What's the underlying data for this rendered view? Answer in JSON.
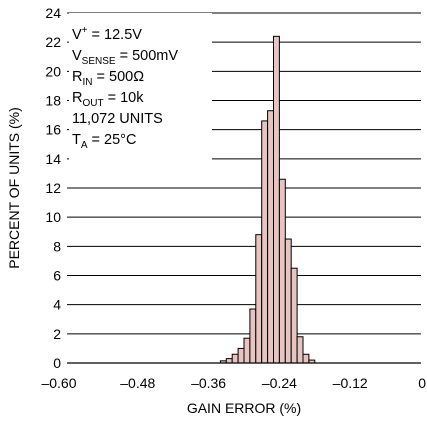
{
  "chart_data": {
    "type": "bar",
    "xlabel": "GAIN ERROR (%)",
    "ylabel": "PERCENT OF UNITS (%)",
    "xlim": [
      -0.6,
      0.0
    ],
    "ylim": [
      0,
      24
    ],
    "x_ticks": [
      -0.6,
      -0.48,
      -0.36,
      -0.24,
      -0.12,
      0
    ],
    "x_tick_labels": [
      "–0.60",
      "–0.48",
      "–0.36",
      "–0.24",
      "–0.12",
      "0"
    ],
    "y_ticks": [
      0,
      2,
      4,
      6,
      8,
      10,
      12,
      14,
      16,
      18,
      20,
      22,
      24
    ],
    "y_tick_labels": [
      "0",
      "2",
      "4",
      "6",
      "8",
      "10",
      "12",
      "14",
      "16",
      "18",
      "20",
      "22",
      "24"
    ],
    "grid": "horizontal",
    "bin_width": 0.01,
    "bars": [
      {
        "x": -0.335,
        "y": 0.15
      },
      {
        "x": -0.325,
        "y": 0.3
      },
      {
        "x": -0.315,
        "y": 0.6
      },
      {
        "x": -0.305,
        "y": 1.0
      },
      {
        "x": -0.295,
        "y": 1.7
      },
      {
        "x": -0.285,
        "y": 3.7
      },
      {
        "x": -0.275,
        "y": 8.8
      },
      {
        "x": -0.265,
        "y": 16.6
      },
      {
        "x": -0.255,
        "y": 17.3
      },
      {
        "x": -0.245,
        "y": 22.4
      },
      {
        "x": -0.235,
        "y": 12.6
      },
      {
        "x": -0.225,
        "y": 8.5
      },
      {
        "x": -0.215,
        "y": 6.5
      },
      {
        "x": -0.205,
        "y": 1.8
      },
      {
        "x": -0.195,
        "y": 0.6
      },
      {
        "x": -0.185,
        "y": 0.2
      }
    ],
    "bar_fill": "#e8c4c0",
    "bar_stroke": "#000000",
    "annotations": {
      "vplus": {
        "main": "V",
        "sup": "+",
        "rest": " = 12.5V"
      },
      "vsense": {
        "main": "V",
        "sub": "SENSE",
        "rest": " = 500mV"
      },
      "rin": {
        "main": "R",
        "sub": "IN",
        "rest": " = 500Ω"
      },
      "rout": {
        "main": "R",
        "sub": "OUT",
        "rest": " = 10k"
      },
      "units": {
        "main": "11,072 UNITS"
      },
      "ta": {
        "main": "T",
        "sub": "A",
        "rest": " = 25°C"
      }
    }
  }
}
